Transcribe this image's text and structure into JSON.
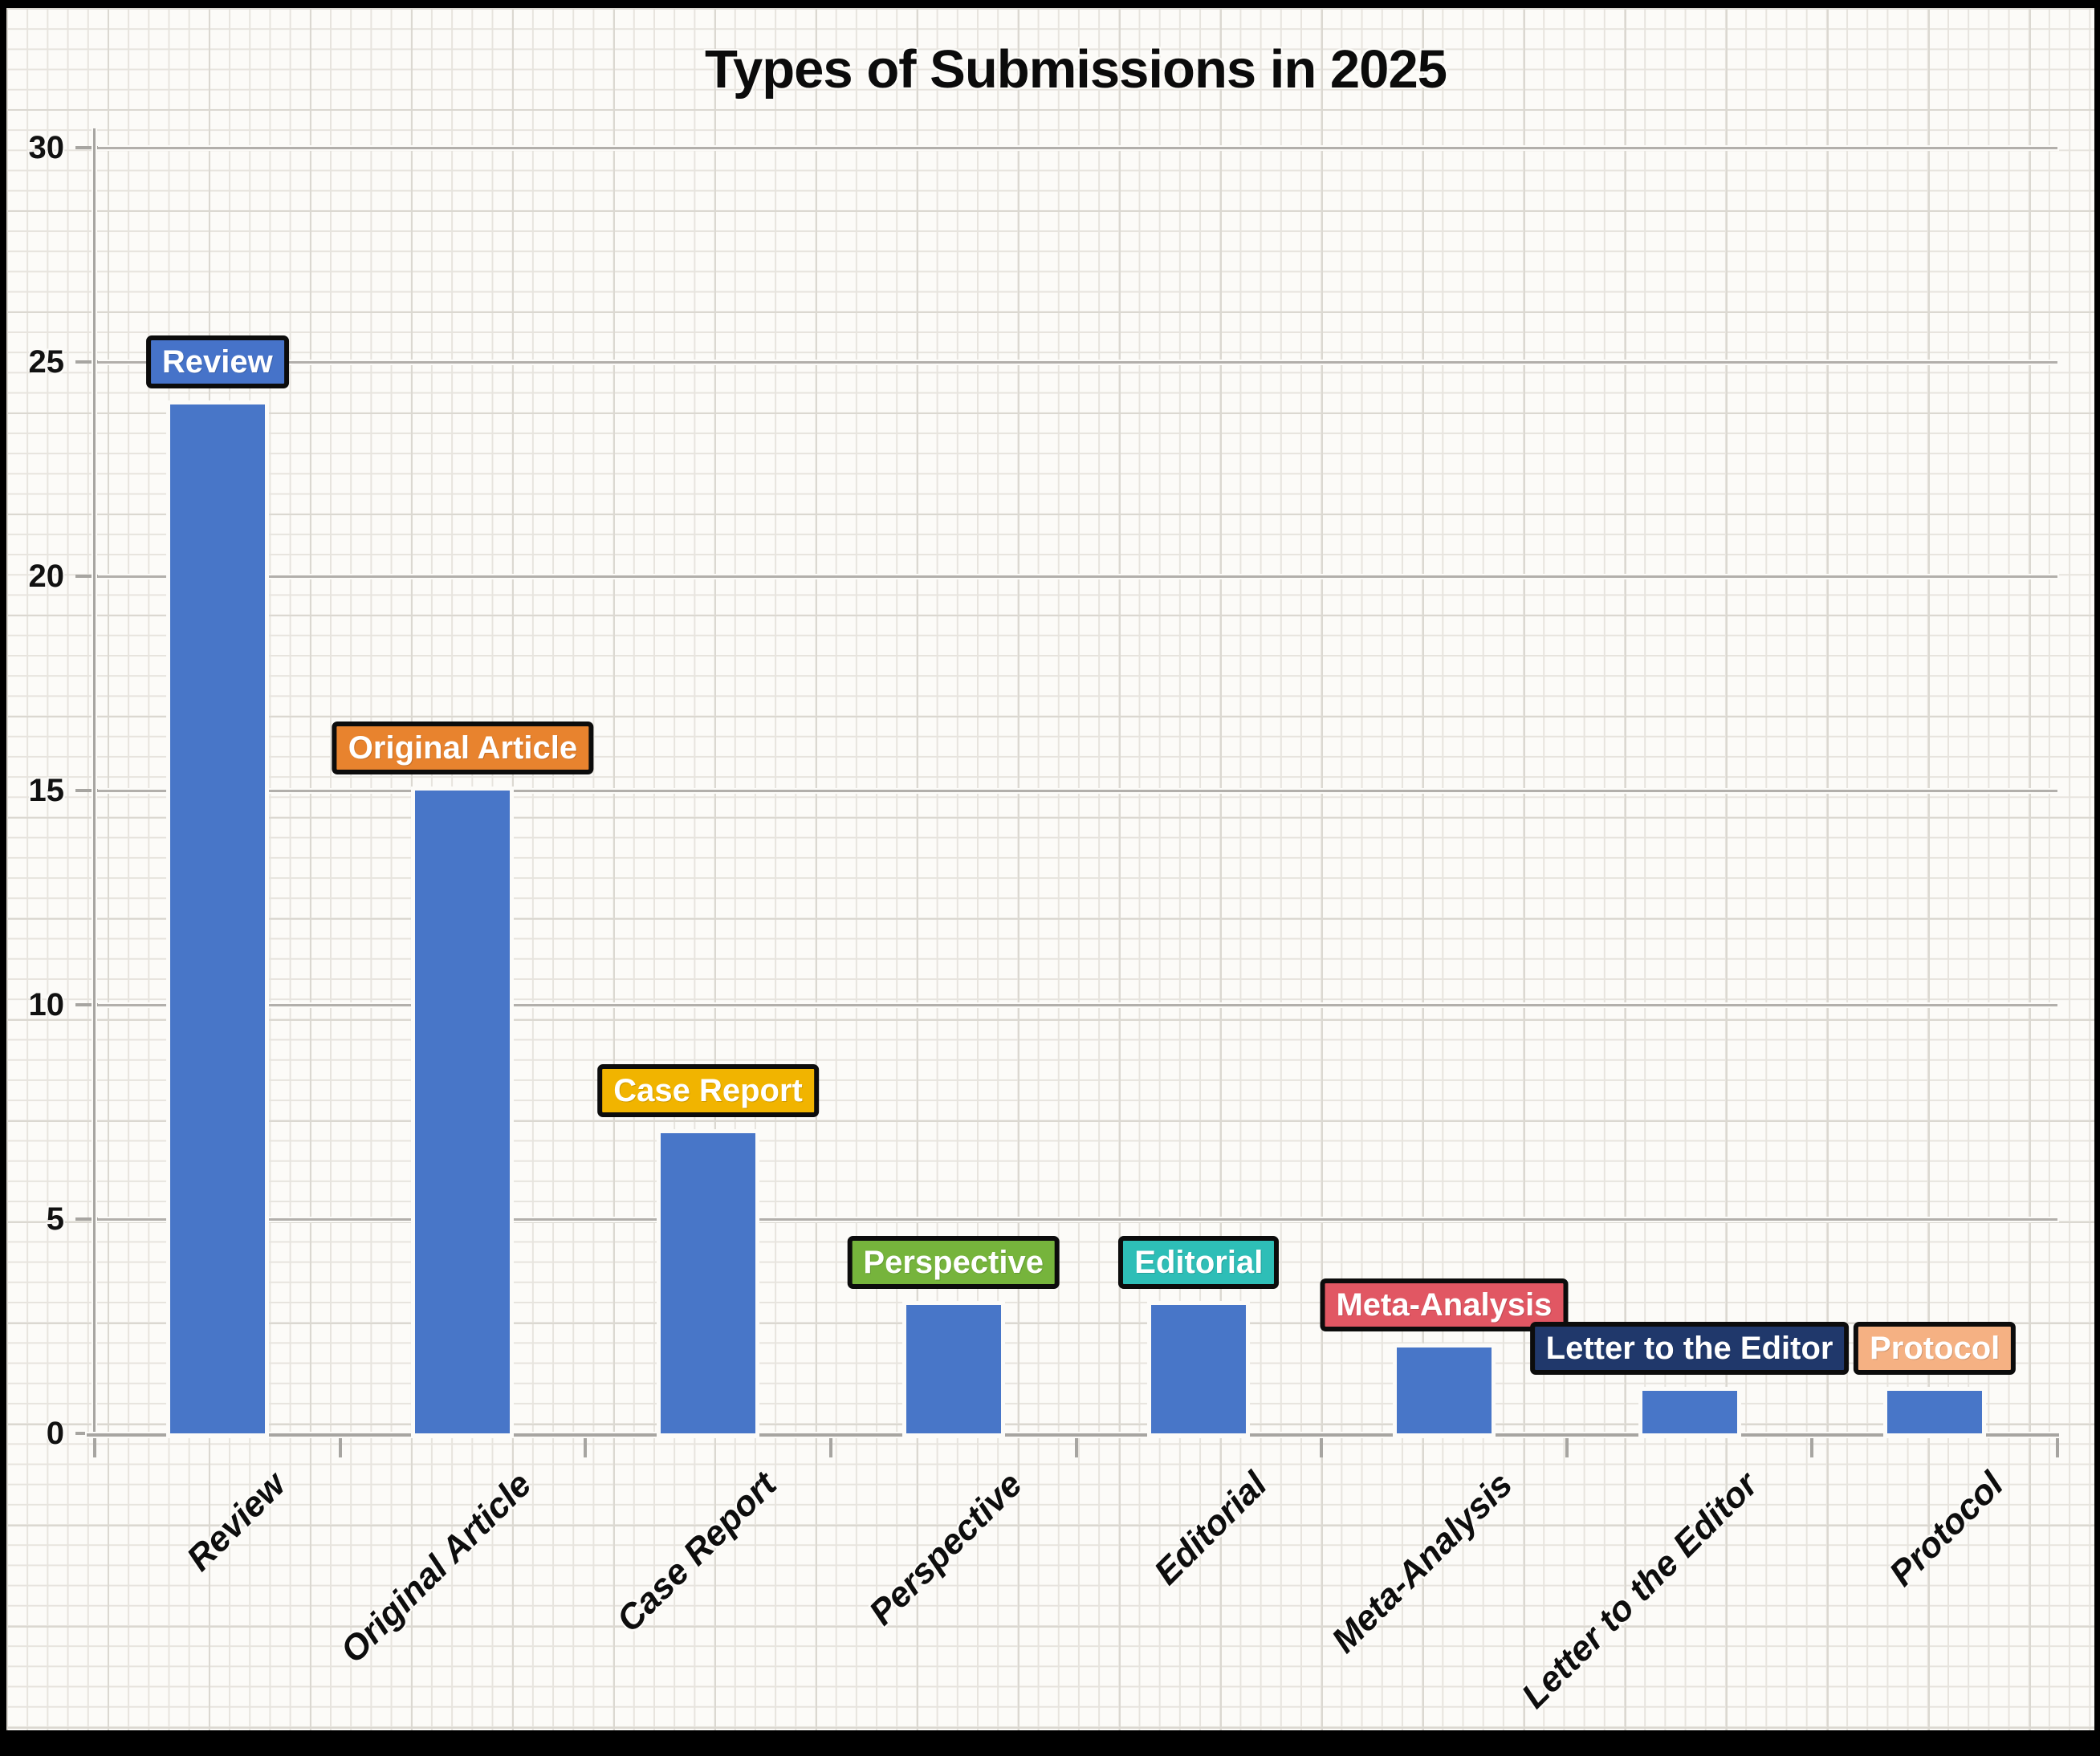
{
  "title": "Types of Submissions in 2025",
  "chart_data": {
    "type": "bar",
    "title": "Types of Submissions in 2025",
    "categories": [
      "Review",
      "Original Article",
      "Case Report",
      "Perspective",
      "Editorial",
      "Meta-Analysis",
      "Letter to the Editor",
      "Protocol"
    ],
    "values": [
      24,
      15,
      7,
      3,
      3,
      2,
      1,
      1
    ],
    "bars": [
      {
        "category": "Review",
        "value": 24,
        "annotation": "Review",
        "annotation_color": "#4673C9"
      },
      {
        "category": "Original Article",
        "value": 15,
        "annotation": "Original Article",
        "annotation_color": "#E8832E"
      },
      {
        "category": "Case Report",
        "value": 7,
        "annotation": "Case Report",
        "annotation_color": "#F1B400"
      },
      {
        "category": "Perspective",
        "value": 3,
        "annotation": "Perspective",
        "annotation_color": "#76B43C"
      },
      {
        "category": "Editorial",
        "value": 3,
        "annotation": "Editorial",
        "annotation_color": "#2EBEB7"
      },
      {
        "category": "Meta-Analysis",
        "value": 2,
        "annotation": "Meta-Analysis",
        "annotation_color": "#E15763"
      },
      {
        "category": "Letter to the Editor",
        "value": 1,
        "annotation": "Letter to the Editor",
        "annotation_color": "#20386B"
      },
      {
        "category": "Protocol",
        "value": 1,
        "annotation": "Protocol",
        "annotation_color": "#F5B183"
      }
    ],
    "bar_color": "#4876C8",
    "annotation_text_color": "#ffffff",
    "xlabel": "",
    "ylabel": "",
    "ylim": [
      0,
      30
    ],
    "yticks": [
      0,
      5,
      10,
      15,
      20,
      25,
      30
    ],
    "grid": true,
    "legend_position": "none",
    "background_style": "graph-paper"
  }
}
